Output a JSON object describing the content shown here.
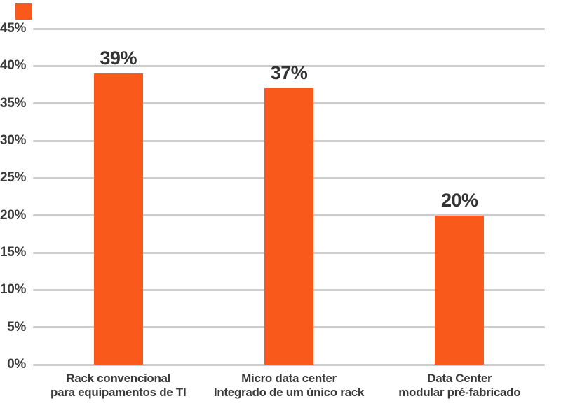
{
  "legend_marker": {
    "color": "#F95A1C"
  },
  "chart_data": {
    "type": "bar",
    "title": "",
    "xlabel": "",
    "ylabel": "",
    "categories": [
      [
        "Rack convencional",
        "para equipamentos de TI"
      ],
      [
        "Micro data center",
        "Integrado de um único rack"
      ],
      [
        "Data Center",
        "modular pré-fabricado"
      ]
    ],
    "values": [
      39,
      37,
      20
    ],
    "value_labels": [
      "39%",
      "37%",
      "20%"
    ],
    "y_tick_values": [
      0,
      5,
      10,
      15,
      20,
      25,
      30,
      35,
      40,
      45
    ],
    "y_tick_labels": [
      "0%",
      "5%",
      "10%",
      "15%",
      "20%",
      "25%",
      "30%",
      "35%",
      "40%",
      "45%"
    ],
    "ylim": [
      0,
      45
    ],
    "grid": "horizontal",
    "legend_position": "none",
    "bar_color": "#F95A1C",
    "text_color": "#3A3A3A",
    "value_label_color": "#333333",
    "gridline_color": "#CCCCCC",
    "background_color": "#FFFFFF"
  }
}
